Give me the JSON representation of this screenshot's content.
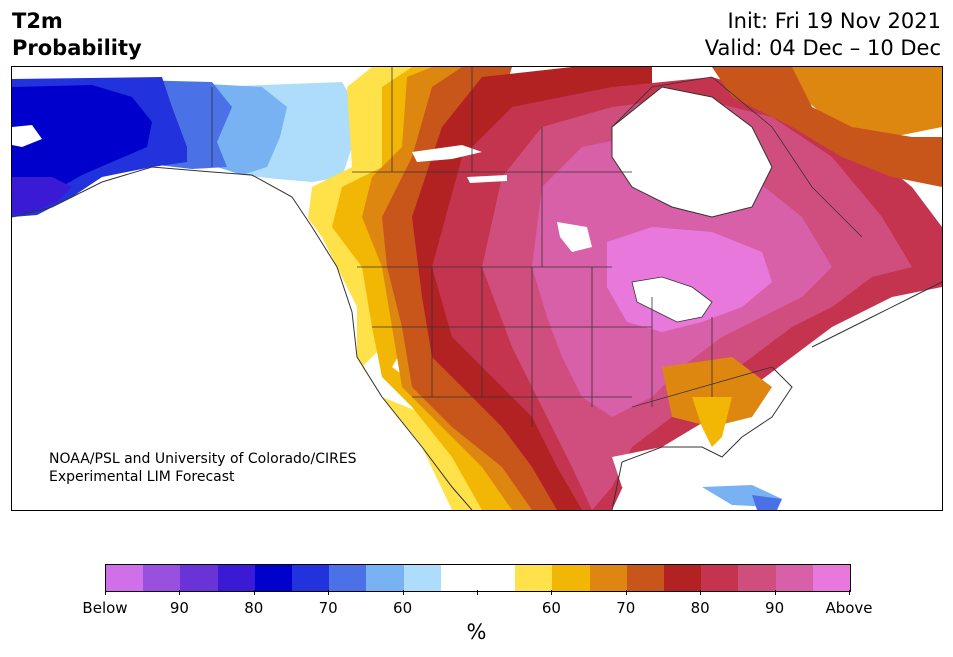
{
  "header": {
    "title_line1": "T2m",
    "title_line2": "Probability",
    "init_line": "Init: Fri 19 Nov 2021",
    "valid_line": "Valid: 04 Dec – 10 Dec"
  },
  "credit": {
    "line1": "NOAA/PSL and University of Colorado/CIRES",
    "line2": "Experimental LIM Forecast"
  },
  "colorbar": {
    "colors": [
      "#d070e8",
      "#9a50de",
      "#6a33d8",
      "#3b1ad6",
      "#0000cc",
      "#2233dd",
      "#4a72e6",
      "#78b2f2",
      "#aedcfb",
      "#ffffff",
      "#ffffff",
      "#ffe14a",
      "#f2b705",
      "#dd8610",
      "#c8561b",
      "#b22222",
      "#c4344e",
      "#d04e7e",
      "#d860a8",
      "#e878dc"
    ],
    "tick_labels": [
      "Below",
      "90",
      "80",
      "70",
      "60",
      "",
      "60",
      "70",
      "80",
      "90",
      "Above"
    ],
    "unit_label": "%"
  },
  "colors": {
    "ocean": "#ffffff",
    "border": "#333333",
    "below_strong": "#0000cc",
    "above_strong": "#d860a8"
  }
}
